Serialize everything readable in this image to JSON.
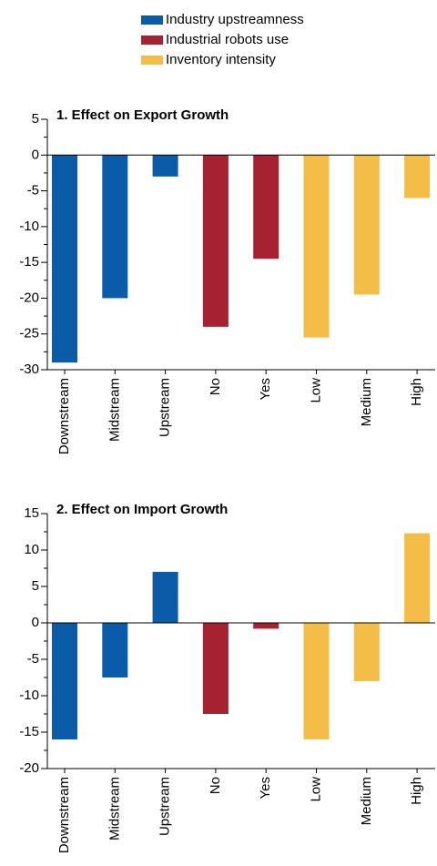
{
  "legend": {
    "items": [
      {
        "name": "Industry upstreamness",
        "color": "#0b5ca8"
      },
      {
        "name": "Industrial robots use",
        "color": "#a62232"
      },
      {
        "name": "Inventory intensity",
        "color": "#f3bd48"
      }
    ]
  },
  "chart_data": [
    {
      "type": "bar",
      "title": "1. Effect on Export Growth",
      "categories": [
        "Downstream",
        "Midstream",
        "Upstream",
        "No",
        "Yes",
        "Low",
        "Medium",
        "High"
      ],
      "values": [
        -29,
        -20,
        -3,
        -24,
        -14.5,
        -25.5,
        -19.5,
        -6
      ],
      "colors": [
        "#0b5ca8",
        "#0b5ca8",
        "#0b5ca8",
        "#a62232",
        "#a62232",
        "#f3bd48",
        "#f3bd48",
        "#f3bd48"
      ],
      "ylim": [
        -30,
        5
      ],
      "yticks": [
        -30,
        -25,
        -20,
        -15,
        -10,
        -5,
        0,
        5
      ],
      "minor_yticks": [
        -27.5,
        -22.5,
        -17.5,
        -12.5,
        -7.5,
        -2.5,
        2.5
      ]
    },
    {
      "type": "bar",
      "title": "2. Effect on Import Growth",
      "categories": [
        "Downstream",
        "Midstream",
        "Upstream",
        "No",
        "Yes",
        "Low",
        "Medium",
        "High"
      ],
      "values": [
        -16,
        -7.5,
        7,
        -12.5,
        -0.8,
        -16,
        -8,
        12.3
      ],
      "colors": [
        "#0b5ca8",
        "#0b5ca8",
        "#0b5ca8",
        "#a62232",
        "#a62232",
        "#f3bd48",
        "#f3bd48",
        "#f3bd48"
      ],
      "ylim": [
        -20,
        15
      ],
      "yticks": [
        -20,
        -15,
        -10,
        -5,
        0,
        5,
        10,
        15
      ],
      "minor_yticks": [
        -17.5,
        -12.5,
        -7.5,
        -2.5,
        2.5,
        7.5,
        12.5
      ]
    }
  ]
}
